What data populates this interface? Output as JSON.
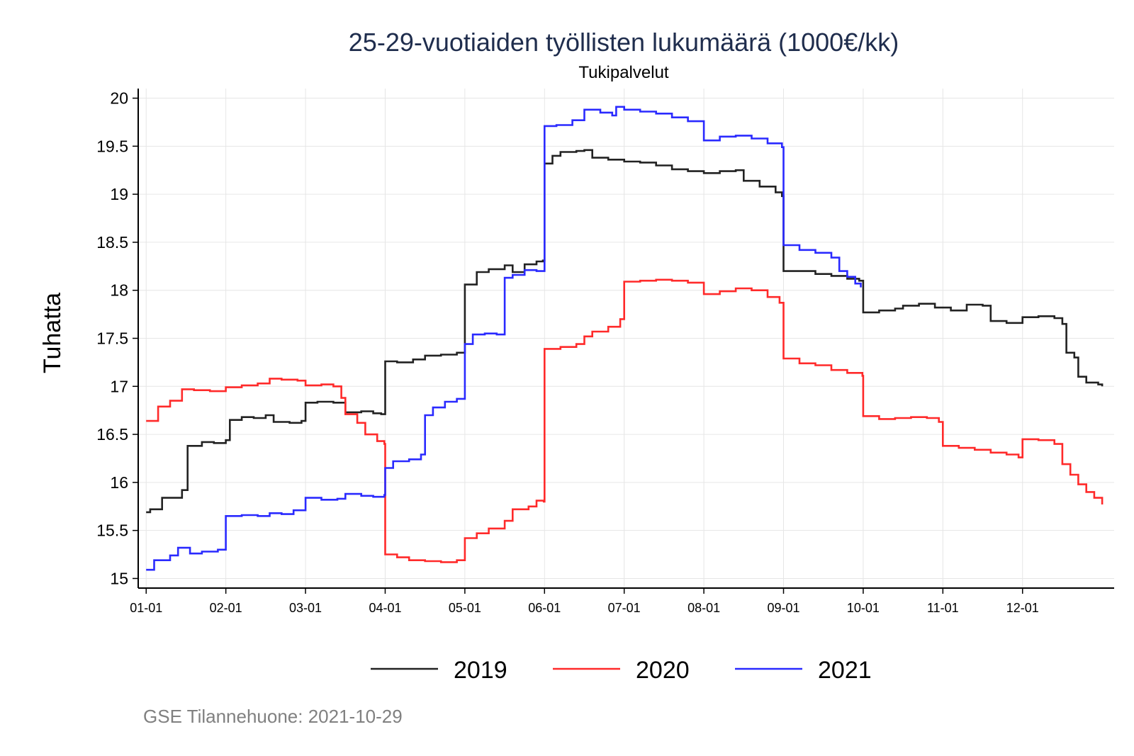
{
  "chart_data": {
    "type": "line",
    "title": "25-29-vuotiaiden työllisten lukumäärä (1000€/kk)",
    "subtitle": "Tukipalvelut",
    "ylabel": "Tuhatta",
    "xlabel": "",
    "ylim": [
      14.9,
      20.1
    ],
    "yticks": [
      15,
      15.5,
      16,
      16.5,
      17,
      17.5,
      18,
      18.5,
      19,
      19.5,
      20
    ],
    "ytick_labels": [
      "15",
      "15.5",
      "16",
      "16.5",
      "17",
      "17.5",
      "18",
      "18.5",
      "19",
      "19.5",
      "20"
    ],
    "xlim": [
      0.9,
      13.15
    ],
    "xticks": [
      1,
      2,
      3,
      4,
      5,
      6,
      7,
      8,
      9,
      10,
      11,
      12
    ],
    "xtick_labels": [
      "01-01",
      "02-01",
      "03-01",
      "04-01",
      "05-01",
      "06-01",
      "07-01",
      "08-01",
      "09-01",
      "10-01",
      "11-01",
      "12-01"
    ],
    "x_unit": "month (fractional)",
    "grid": true,
    "legend_position": "bottom",
    "caption": "GSE Tilannehuone: 2021-10-29",
    "series": [
      {
        "name": "2019",
        "color": "#222222",
        "points": [
          [
            1.0,
            15.69
          ],
          [
            1.05,
            15.72
          ],
          [
            1.2,
            15.84
          ],
          [
            1.45,
            15.92
          ],
          [
            1.52,
            16.38
          ],
          [
            1.7,
            16.42
          ],
          [
            1.85,
            16.41
          ],
          [
            2.0,
            16.44
          ],
          [
            2.05,
            16.65
          ],
          [
            2.2,
            16.68
          ],
          [
            2.35,
            16.67
          ],
          [
            2.5,
            16.7
          ],
          [
            2.6,
            16.63
          ],
          [
            2.8,
            16.62
          ],
          [
            2.95,
            16.64
          ],
          [
            3.0,
            16.83
          ],
          [
            3.15,
            16.84
          ],
          [
            3.35,
            16.83
          ],
          [
            3.5,
            16.73
          ],
          [
            3.7,
            16.74
          ],
          [
            3.85,
            16.72
          ],
          [
            3.95,
            16.71
          ],
          [
            4.0,
            17.26
          ],
          [
            4.15,
            17.25
          ],
          [
            4.35,
            17.28
          ],
          [
            4.5,
            17.32
          ],
          [
            4.7,
            17.33
          ],
          [
            4.9,
            17.35
          ],
          [
            5.0,
            18.06
          ],
          [
            5.15,
            18.19
          ],
          [
            5.3,
            18.22
          ],
          [
            5.5,
            18.26
          ],
          [
            5.6,
            18.19
          ],
          [
            5.75,
            18.27
          ],
          [
            5.9,
            18.3
          ],
          [
            5.98,
            18.31
          ],
          [
            6.0,
            19.32
          ],
          [
            6.1,
            19.4
          ],
          [
            6.2,
            19.44
          ],
          [
            6.4,
            19.45
          ],
          [
            6.5,
            19.46
          ],
          [
            6.6,
            19.38
          ],
          [
            6.8,
            19.36
          ],
          [
            7.0,
            19.34
          ],
          [
            7.2,
            19.33
          ],
          [
            7.4,
            19.3
          ],
          [
            7.6,
            19.26
          ],
          [
            7.8,
            19.24
          ],
          [
            8.0,
            19.22
          ],
          [
            8.2,
            19.24
          ],
          [
            8.4,
            19.25
          ],
          [
            8.5,
            19.14
          ],
          [
            8.7,
            19.08
          ],
          [
            8.9,
            19.02
          ],
          [
            8.98,
            18.98
          ],
          [
            9.0,
            18.2
          ],
          [
            9.2,
            18.2
          ],
          [
            9.4,
            18.17
          ],
          [
            9.6,
            18.15
          ],
          [
            9.8,
            18.12
          ],
          [
            9.95,
            18.1
          ],
          [
            10.0,
            17.77
          ],
          [
            10.2,
            17.79
          ],
          [
            10.4,
            17.81
          ],
          [
            10.5,
            17.84
          ],
          [
            10.7,
            17.86
          ],
          [
            10.9,
            17.82
          ],
          [
            11.0,
            17.82
          ],
          [
            11.1,
            17.79
          ],
          [
            11.3,
            17.85
          ],
          [
            11.5,
            17.84
          ],
          [
            11.6,
            17.68
          ],
          [
            11.8,
            17.66
          ],
          [
            12.0,
            17.72
          ],
          [
            12.2,
            17.73
          ],
          [
            12.4,
            17.71
          ],
          [
            12.5,
            17.65
          ],
          [
            12.55,
            17.35
          ],
          [
            12.65,
            17.3
          ],
          [
            12.7,
            17.1
          ],
          [
            12.8,
            17.04
          ],
          [
            12.95,
            17.02
          ],
          [
            13.0,
            17.0
          ]
        ]
      },
      {
        "name": "2020",
        "color": "#ff2a2a",
        "points": [
          [
            1.0,
            16.64
          ],
          [
            1.15,
            16.79
          ],
          [
            1.3,
            16.85
          ],
          [
            1.45,
            16.97
          ],
          [
            1.6,
            16.96
          ],
          [
            1.8,
            16.95
          ],
          [
            2.0,
            16.99
          ],
          [
            2.2,
            17.01
          ],
          [
            2.4,
            17.03
          ],
          [
            2.55,
            17.08
          ],
          [
            2.7,
            17.07
          ],
          [
            2.9,
            17.06
          ],
          [
            3.0,
            17.01
          ],
          [
            3.2,
            17.02
          ],
          [
            3.35,
            17.0
          ],
          [
            3.45,
            16.88
          ],
          [
            3.5,
            16.71
          ],
          [
            3.65,
            16.62
          ],
          [
            3.75,
            16.5
          ],
          [
            3.9,
            16.43
          ],
          [
            3.99,
            16.4
          ],
          [
            4.0,
            15.25
          ],
          [
            4.15,
            15.22
          ],
          [
            4.3,
            15.19
          ],
          [
            4.5,
            15.18
          ],
          [
            4.7,
            15.17
          ],
          [
            4.9,
            15.19
          ],
          [
            5.0,
            15.42
          ],
          [
            5.15,
            15.47
          ],
          [
            5.3,
            15.52
          ],
          [
            5.5,
            15.6
          ],
          [
            5.6,
            15.72
          ],
          [
            5.8,
            15.75
          ],
          [
            5.9,
            15.81
          ],
          [
            5.99,
            15.8
          ],
          [
            6.0,
            17.39
          ],
          [
            6.2,
            17.41
          ],
          [
            6.4,
            17.44
          ],
          [
            6.5,
            17.52
          ],
          [
            6.6,
            17.57
          ],
          [
            6.8,
            17.62
          ],
          [
            6.95,
            17.7
          ],
          [
            7.0,
            18.09
          ],
          [
            7.2,
            18.1
          ],
          [
            7.4,
            18.11
          ],
          [
            7.6,
            18.1
          ],
          [
            7.8,
            18.08
          ],
          [
            8.0,
            17.96
          ],
          [
            8.2,
            17.99
          ],
          [
            8.4,
            18.02
          ],
          [
            8.6,
            18.0
          ],
          [
            8.8,
            17.93
          ],
          [
            8.95,
            17.87
          ],
          [
            9.0,
            17.29
          ],
          [
            9.2,
            17.24
          ],
          [
            9.4,
            17.22
          ],
          [
            9.6,
            17.17
          ],
          [
            9.8,
            17.14
          ],
          [
            9.99,
            17.11
          ],
          [
            10.0,
            16.69
          ],
          [
            10.2,
            16.66
          ],
          [
            10.4,
            16.67
          ],
          [
            10.6,
            16.68
          ],
          [
            10.8,
            16.67
          ],
          [
            10.95,
            16.63
          ],
          [
            11.0,
            16.38
          ],
          [
            11.2,
            16.36
          ],
          [
            11.4,
            16.34
          ],
          [
            11.6,
            16.31
          ],
          [
            11.8,
            16.29
          ],
          [
            11.95,
            16.26
          ],
          [
            12.0,
            16.45
          ],
          [
            12.2,
            16.44
          ],
          [
            12.4,
            16.4
          ],
          [
            12.5,
            16.19
          ],
          [
            12.6,
            16.08
          ],
          [
            12.7,
            15.98
          ],
          [
            12.8,
            15.9
          ],
          [
            12.9,
            15.84
          ],
          [
            13.0,
            15.77
          ]
        ]
      },
      {
        "name": "2021",
        "color": "#2a2aff",
        "points": [
          [
            1.0,
            15.09
          ],
          [
            1.1,
            15.19
          ],
          [
            1.3,
            15.24
          ],
          [
            1.4,
            15.32
          ],
          [
            1.55,
            15.26
          ],
          [
            1.7,
            15.28
          ],
          [
            1.9,
            15.3
          ],
          [
            2.0,
            15.65
          ],
          [
            2.2,
            15.66
          ],
          [
            2.4,
            15.65
          ],
          [
            2.55,
            15.68
          ],
          [
            2.7,
            15.67
          ],
          [
            2.85,
            15.71
          ],
          [
            3.0,
            15.84
          ],
          [
            3.2,
            15.82
          ],
          [
            3.4,
            15.83
          ],
          [
            3.5,
            15.88
          ],
          [
            3.7,
            15.86
          ],
          [
            3.85,
            15.85
          ],
          [
            3.99,
            15.87
          ],
          [
            4.0,
            16.15
          ],
          [
            4.1,
            16.22
          ],
          [
            4.3,
            16.24
          ],
          [
            4.45,
            16.29
          ],
          [
            4.5,
            16.7
          ],
          [
            4.6,
            16.78
          ],
          [
            4.75,
            16.84
          ],
          [
            4.9,
            16.87
          ],
          [
            5.0,
            17.44
          ],
          [
            5.1,
            17.54
          ],
          [
            5.25,
            17.55
          ],
          [
            5.4,
            17.54
          ],
          [
            5.5,
            18.13
          ],
          [
            5.6,
            18.16
          ],
          [
            5.75,
            18.21
          ],
          [
            5.9,
            18.2
          ],
          [
            5.99,
            18.2
          ],
          [
            6.0,
            19.71
          ],
          [
            6.15,
            19.72
          ],
          [
            6.35,
            19.77
          ],
          [
            6.5,
            19.88
          ],
          [
            6.7,
            19.85
          ],
          [
            6.85,
            19.82
          ],
          [
            6.9,
            19.91
          ],
          [
            7.0,
            19.88
          ],
          [
            7.2,
            19.86
          ],
          [
            7.4,
            19.84
          ],
          [
            7.6,
            19.8
          ],
          [
            7.8,
            19.76
          ],
          [
            8.0,
            19.56
          ],
          [
            8.2,
            19.6
          ],
          [
            8.4,
            19.61
          ],
          [
            8.6,
            19.58
          ],
          [
            8.8,
            19.53
          ],
          [
            8.98,
            19.49
          ],
          [
            9.0,
            18.47
          ],
          [
            9.2,
            18.42
          ],
          [
            9.4,
            18.39
          ],
          [
            9.6,
            18.34
          ],
          [
            9.7,
            18.2
          ],
          [
            9.8,
            18.14
          ],
          [
            9.9,
            18.07
          ],
          [
            9.97,
            18.03
          ]
        ]
      }
    ]
  }
}
